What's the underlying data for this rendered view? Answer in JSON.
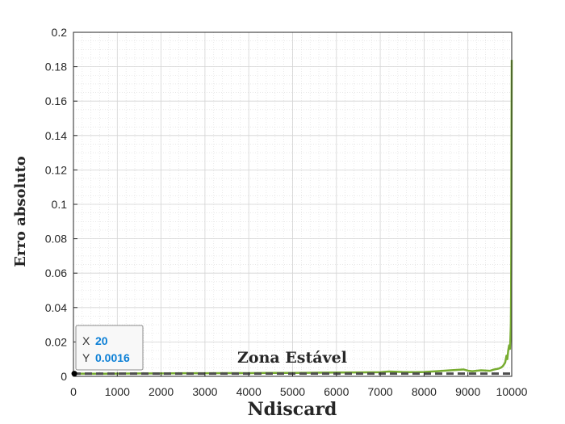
{
  "chart_data": {
    "type": "line",
    "xlabel": "Ndiscard",
    "ylabel": "Erro absoluto",
    "xlim": [
      0,
      10000
    ],
    "ylim": [
      0,
      0.2
    ],
    "xticks": [
      "0",
      "1000",
      "2000",
      "3000",
      "4000",
      "5000",
      "6000",
      "7000",
      "8000",
      "9000",
      "10000"
    ],
    "yticks": [
      "0",
      "0.02",
      "0.04",
      "0.06",
      "0.08",
      "0.1",
      "0.12",
      "0.14",
      "0.16",
      "0.18",
      "0.2"
    ],
    "grid": true,
    "minor_grid": true,
    "annotation": "Zona Estável",
    "colors": {
      "series": "#77ac30",
      "reference": "#4d4d4d",
      "tooltip_value": "#0b7fd6"
    },
    "series": [
      {
        "x": [
          0,
          500,
          1000,
          1500,
          2000,
          2500,
          3000,
          3500,
          4000,
          4500,
          5000,
          5500,
          6000,
          6500,
          7000,
          7200,
          7500,
          7800,
          8000,
          8300,
          8600,
          8900,
          9000,
          9100,
          9300,
          9500,
          9600,
          9700,
          9750,
          9800,
          9850,
          9880,
          9900,
          9920,
          9940,
          9960,
          9970,
          9980,
          9985,
          9990,
          9995,
          10000
        ],
        "y": [
          0.0016,
          0.0015,
          0.0016,
          0.0017,
          0.0017,
          0.0018,
          0.0018,
          0.0019,
          0.0019,
          0.002,
          0.002,
          0.0021,
          0.0022,
          0.0023,
          0.0024,
          0.0028,
          0.0025,
          0.0024,
          0.0025,
          0.003,
          0.0035,
          0.004,
          0.0033,
          0.003,
          0.0035,
          0.0032,
          0.004,
          0.0045,
          0.005,
          0.006,
          0.008,
          0.012,
          0.01,
          0.015,
          0.018,
          0.016,
          0.022,
          0.03,
          0.045,
          0.08,
          0.14,
          0.184
        ]
      },
      {
        "style": "dashed",
        "x": [
          0,
          10000
        ],
        "y": [
          0.0016,
          0.0016
        ]
      }
    ],
    "datatip": {
      "x_key": "X",
      "x_value": "20",
      "y_key": "Y",
      "y_value": "0.0016",
      "marker_x": 20,
      "marker_y": 0.0016
    }
  }
}
